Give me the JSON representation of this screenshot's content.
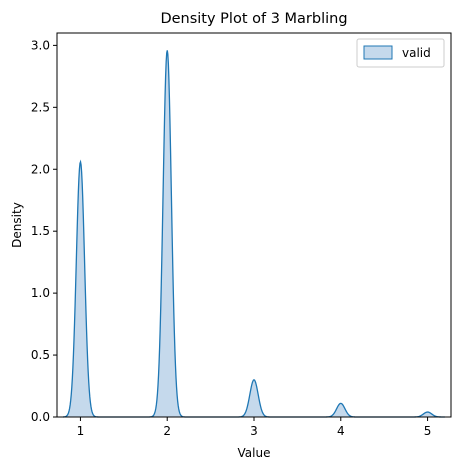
{
  "chart_data": {
    "type": "area",
    "title": "Density Plot of 3 Marbling",
    "xlabel": "Value",
    "ylabel": "Density",
    "xlim": [
      0.73,
      5.27
    ],
    "ylim": [
      0,
      3.1
    ],
    "xticks": [
      1,
      2,
      3,
      4,
      5
    ],
    "xtick_labels": [
      "1",
      "2",
      "3",
      "4",
      "5"
    ],
    "yticks": [
      0,
      0.5,
      1.0,
      1.5,
      2.0,
      2.5,
      3.0
    ],
    "ytick_labels": [
      "0.0",
      "0.5",
      "1.0",
      "1.5",
      "2.0",
      "2.5",
      "3.0"
    ],
    "grid": false,
    "legend_position": "top-right",
    "colors": {
      "line": "#1f77b4",
      "fill": "#c5d9ec"
    },
    "series": [
      {
        "name": "valid",
        "peaks": [
          {
            "x": 1,
            "density": 2.06
          },
          {
            "x": 2,
            "density": 2.96
          },
          {
            "x": 3,
            "density": 0.3
          },
          {
            "x": 4,
            "density": 0.11
          },
          {
            "x": 5,
            "density": 0.04
          }
        ],
        "x_range": [
          0.8,
          5.2
        ]
      }
    ]
  }
}
